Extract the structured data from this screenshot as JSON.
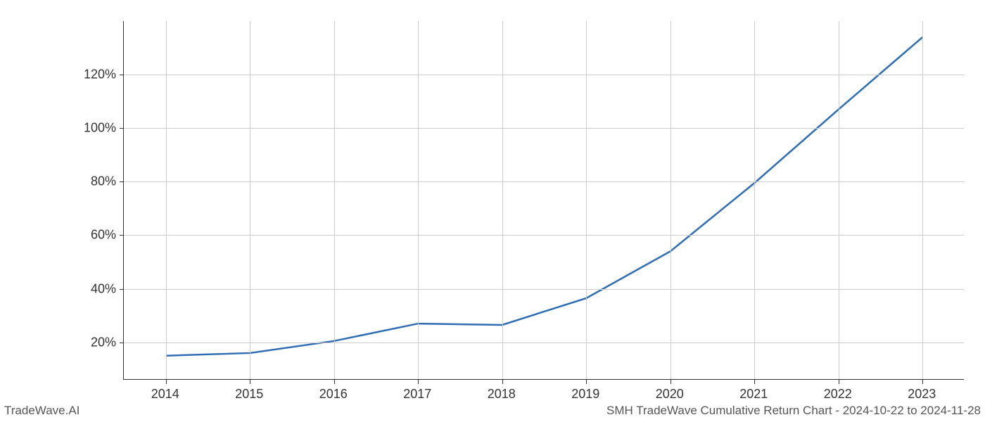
{
  "chart": {
    "type": "line",
    "x_categories": [
      "2014",
      "2015",
      "2016",
      "2017",
      "2018",
      "2019",
      "2020",
      "2021",
      "2022",
      "2023"
    ],
    "y_values": [
      15,
      16,
      20.5,
      27,
      26.5,
      36.5,
      54,
      79.5,
      107,
      134
    ],
    "line_color": "#2e6db4",
    "line_width": 2.5,
    "xlim": [
      -0.5,
      9.5
    ],
    "ylim": [
      6,
      140
    ],
    "y_ticks": [
      20,
      40,
      60,
      80,
      100,
      120
    ],
    "y_tick_labels": [
      "20%",
      "40%",
      "60%",
      "80%",
      "100%",
      "120%"
    ],
    "x_tick_labels": [
      "2014",
      "2015",
      "2016",
      "2017",
      "2018",
      "2019",
      "2020",
      "2021",
      "2022",
      "2023"
    ],
    "background_color": "#ffffff",
    "grid_color": "#cccccc",
    "axis_color": "#333333",
    "tick_fontsize": 18
  },
  "footer": {
    "left": "TradeWave.AI",
    "right": "SMH TradeWave Cumulative Return Chart - 2024-10-22 to 2024-11-28"
  }
}
